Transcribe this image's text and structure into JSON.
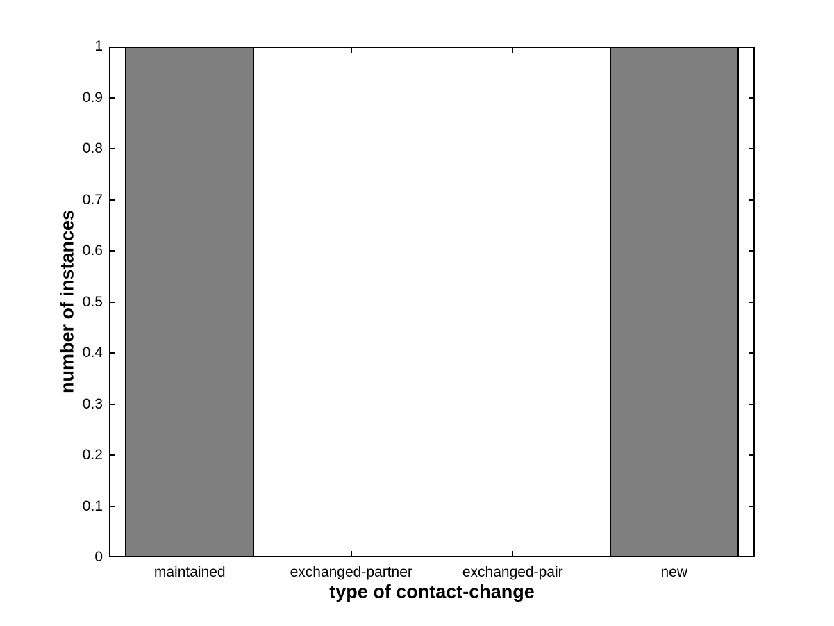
{
  "chart_data": {
    "type": "bar",
    "categories": [
      "maintained",
      "exchanged-partner",
      "exchanged-pair",
      "new"
    ],
    "values": [
      1,
      0,
      0,
      1
    ],
    "title": "",
    "xlabel": "type of contact-change",
    "ylabel": "number of instances",
    "ylim": [
      0,
      1
    ],
    "yticks": [
      0,
      0.1,
      0.2,
      0.3,
      0.4,
      0.5,
      0.6,
      0.7,
      0.8,
      0.9,
      1
    ],
    "ytick_labels": [
      "0",
      "0.1",
      "0.2",
      "0.3",
      "0.4",
      "0.5",
      "0.6",
      "0.7",
      "0.8",
      "0.9",
      "1"
    ],
    "bar_width_fraction": 0.8,
    "bar_color": "#7F7F7F",
    "bar_edge_color": "#000000",
    "axis_color": "#000000",
    "grid": false,
    "legend": "none",
    "tick_direction": "in",
    "box": "on"
  }
}
